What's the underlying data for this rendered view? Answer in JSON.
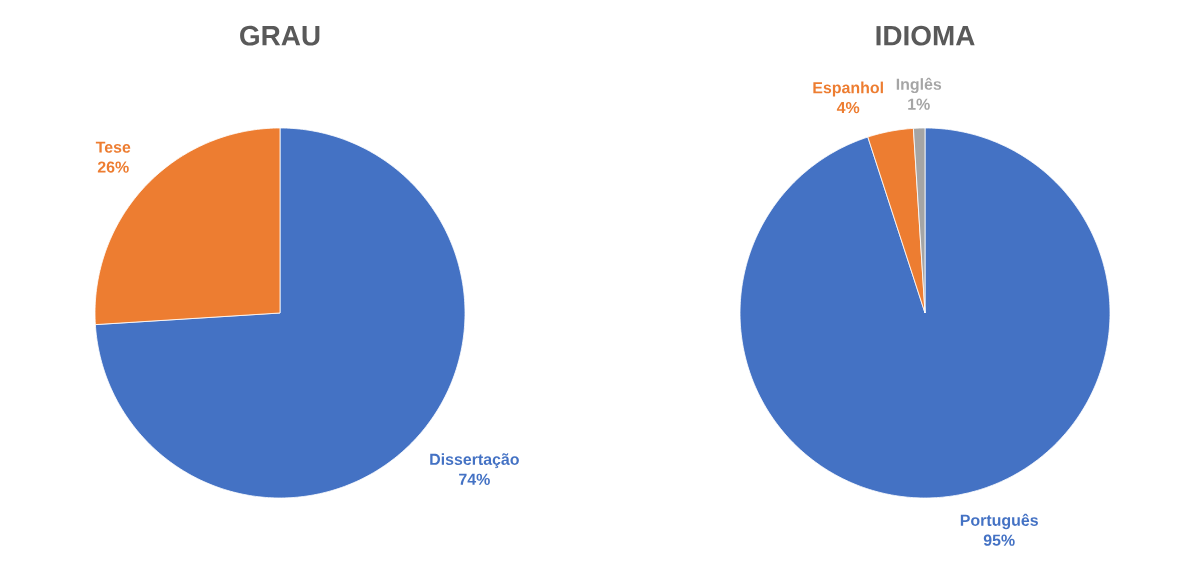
{
  "chart_data": [
    {
      "type": "pie",
      "title": "GRAU",
      "categories": [
        "Dissertação",
        "Tese"
      ],
      "values": [
        74,
        26
      ],
      "colors": [
        "#4472c4",
        "#ed7d31"
      ],
      "value_labels": [
        "74%",
        "26%"
      ]
    },
    {
      "type": "pie",
      "title": "IDIOMA",
      "categories": [
        "Português",
        "Espanhol",
        "Inglês"
      ],
      "values": [
        95,
        4,
        1
      ],
      "colors": [
        "#4472c4",
        "#ed7d31",
        "#a5a5a5"
      ],
      "value_labels": [
        "95%",
        "4%",
        "1%"
      ]
    }
  ]
}
